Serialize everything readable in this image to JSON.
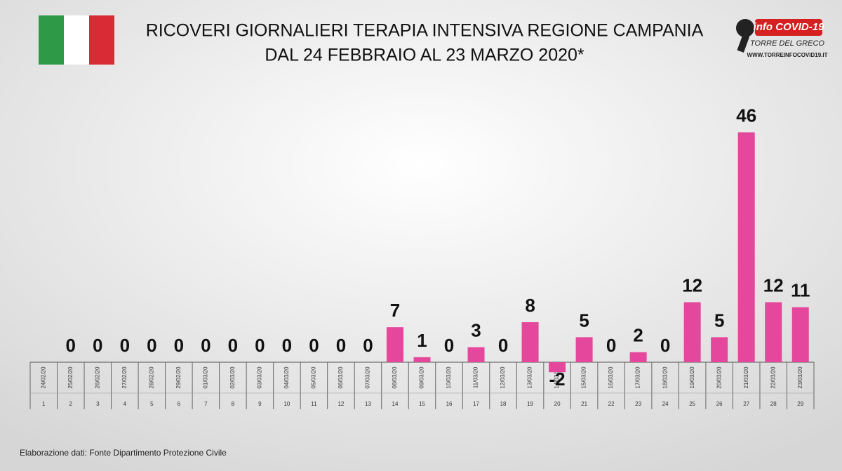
{
  "chart_data": {
    "type": "bar",
    "title": "RICOVERI GIORNALIERI TERAPIA INTENSIVA REGIONE CAMPANIA",
    "subtitle": "DAL 24 FEBBRAIO AL 23 MARZO 2020*",
    "categories": [
      "24/02/20",
      "25/02/20",
      "26/02/20",
      "27/02/20",
      "28/02/20",
      "29/02/20",
      "01/03/20",
      "02/03/20",
      "03/03/20",
      "04/03/20",
      "05/03/20",
      "06/03/20",
      "07/03/20",
      "08/03/20",
      "09/03/20",
      "10/03/20",
      "11/03/20",
      "12/03/20",
      "13/03/20",
      "14/03/20",
      "15/03/20",
      "16/03/20",
      "17/03/20",
      "18/03/20",
      "19/03/20",
      "20/03/20",
      "21/03/20",
      "22/03/20",
      "23/03/20"
    ],
    "day_numbers": [
      1,
      2,
      3,
      4,
      5,
      6,
      7,
      8,
      9,
      10,
      11,
      12,
      13,
      14,
      15,
      16,
      17,
      18,
      19,
      20,
      21,
      22,
      23,
      24,
      25,
      26,
      27,
      28,
      29
    ],
    "values": [
      null,
      0,
      0,
      0,
      0,
      0,
      0,
      0,
      0,
      0,
      0,
      0,
      0,
      7,
      1,
      0,
      3,
      0,
      8,
      -2,
      5,
      0,
      2,
      0,
      12,
      5,
      46,
      12,
      11
    ],
    "color": "#e4479b",
    "ylim": [
      0,
      50
    ],
    "source": "Elaborazione dati: Fonte Dipartimento Protezione Civile",
    "annotations": [
      "info COVID-19",
      "TORRE DEL GRECO",
      "WWW.TORREINFOCOVID19.IT"
    ]
  }
}
